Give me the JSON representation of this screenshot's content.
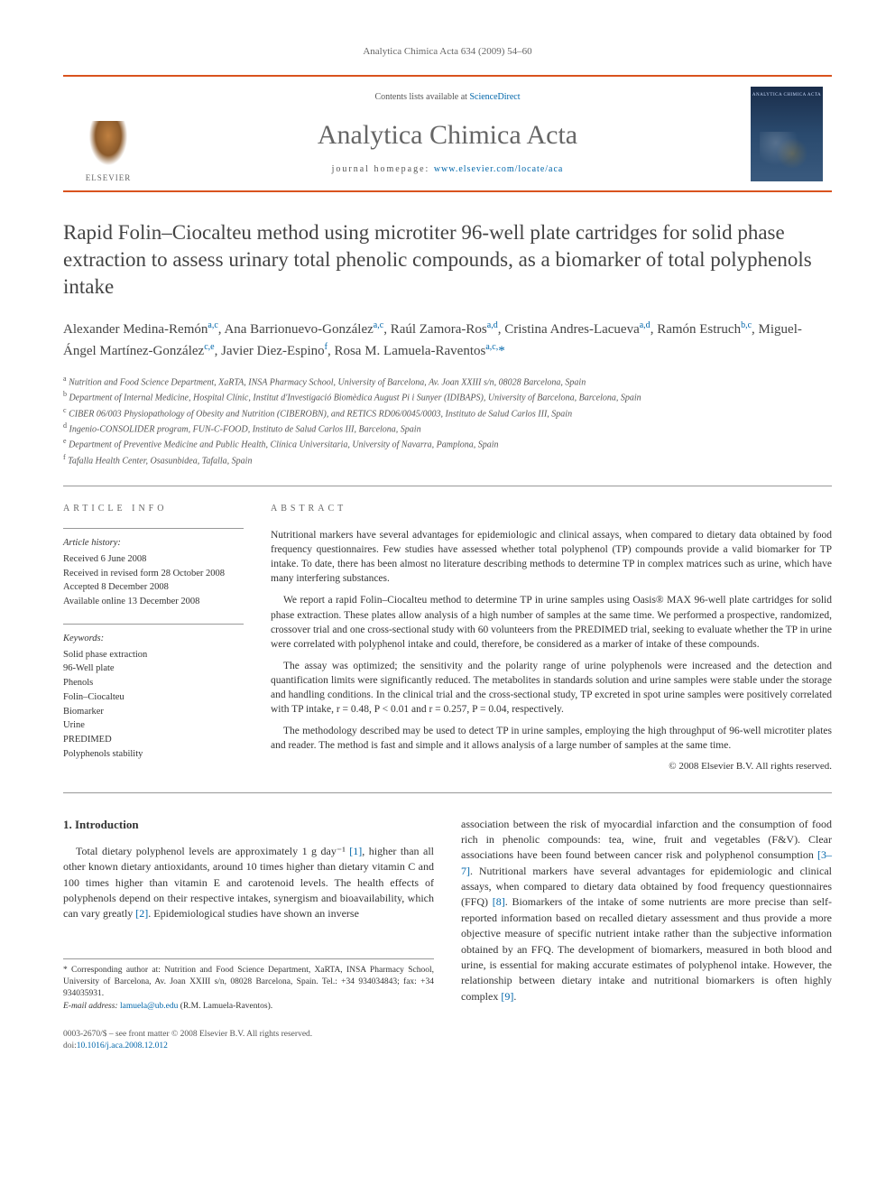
{
  "running_head": "Analytica Chimica Acta 634 (2009) 54–60",
  "masthead": {
    "contents_prefix": "Contents lists available at ",
    "contents_link": "ScienceDirect",
    "journal_name": "Analytica Chimica Acta",
    "homepage_prefix": "journal homepage: ",
    "homepage_link": "www.elsevier.com/locate/aca",
    "publisher_logo_text": "ELSEVIER"
  },
  "article": {
    "title": "Rapid Folin–Ciocalteu method using microtiter 96-well plate cartridges for solid phase extraction to assess urinary total phenolic compounds, as a biomarker of total polyphenols intake",
    "authors_html": "Alexander Medina-Remón<sup>a,c</sup>, Ana Barrionuevo-González<sup>a,c</sup>, Raúl Zamora-Ros<sup>a,d</sup>, Cristina Andres-Lacueva<sup>a,d</sup>, Ramón Estruch<sup>b,c</sup>, Miguel-Ángel Martínez-González<sup>c,e</sup>, Javier Diez-Espino<sup>f</sup>, Rosa M. Lamuela-Raventos<sup>a,c,</sup><span class='corr'>*</span>",
    "affiliations": [
      {
        "tag": "a",
        "text": "Nutrition and Food Science Department, XaRTA, INSA Pharmacy School, University of Barcelona, Av. Joan XXIII s/n, 08028 Barcelona, Spain"
      },
      {
        "tag": "b",
        "text": "Department of Internal Medicine, Hospital Clínic, Institut d'Investigació Biomèdica August Pi i Sunyer (IDIBAPS), University of Barcelona, Barcelona, Spain"
      },
      {
        "tag": "c",
        "text": "CIBER 06/003 Physiopathology of Obesity and Nutrition (CIBEROBN), and RETICS RD06/0045/0003, Instituto de Salud Carlos III, Spain"
      },
      {
        "tag": "d",
        "text": "Ingenio-CONSOLIDER program, FUN-C-FOOD, Instituto de Salud Carlos III, Barcelona, Spain"
      },
      {
        "tag": "e",
        "text": "Department of Preventive Medicine and Public Health, Clínica Universitaria, University of Navarra, Pamplona, Spain"
      },
      {
        "tag": "f",
        "text": "Tafalla Health Center, Osasunbidea, Tafalla, Spain"
      }
    ]
  },
  "info": {
    "heading": "article info",
    "history_title": "Article history:",
    "history": [
      "Received 6 June 2008",
      "Received in revised form 28 October 2008",
      "Accepted 8 December 2008",
      "Available online 13 December 2008"
    ],
    "keywords_title": "Keywords:",
    "keywords": [
      "Solid phase extraction",
      "96-Well plate",
      "Phenols",
      "Folin–Ciocalteu",
      "Biomarker",
      "Urine",
      "PREDIMED",
      "Polyphenols stability"
    ]
  },
  "abstract": {
    "heading": "abstract",
    "paragraphs": [
      "Nutritional markers have several advantages for epidemiologic and clinical assays, when compared to dietary data obtained by food frequency questionnaires. Few studies have assessed whether total polyphenol (TP) compounds provide a valid biomarker for TP intake. To date, there has been almost no literature describing methods to determine TP in complex matrices such as urine, which have many interfering substances.",
      "We report a rapid Folin–Ciocalteu method to determine TP in urine samples using Oasis® MAX 96-well plate cartridges for solid phase extraction. These plates allow analysis of a high number of samples at the same time. We performed a prospective, randomized, crossover trial and one cross-sectional study with 60 volunteers from the PREDIMED trial, seeking to evaluate whether the TP in urine were correlated with polyphenol intake and could, therefore, be considered as a marker of intake of these compounds.",
      "The assay was optimized; the sensitivity and the polarity range of urine polyphenols were increased and the detection and quantification limits were significantly reduced. The metabolites in standards solution and urine samples were stable under the storage and handling conditions. In the clinical trial and the cross-sectional study, TP excreted in spot urine samples were positively correlated with TP intake, r = 0.48, P < 0.01 and r = 0.257, P = 0.04, respectively.",
      "The methodology described may be used to detect TP in urine samples, employing the high throughput of 96-well microtiter plates and reader. The method is fast and simple and it allows analysis of a large number of samples at the same time."
    ],
    "copyright": "© 2008 Elsevier B.V. All rights reserved."
  },
  "body": {
    "section_number": "1.",
    "section_title": "Introduction",
    "col1": "Total dietary polyphenol levels are approximately 1 g day⁻¹ [1], higher than all other known dietary antioxidants, around 10 times higher than dietary vitamin C and 100 times higher than vitamin E and carotenoid levels. The health effects of polyphenols depend on their respective intakes, synergism and bioavailability, which can vary greatly [2]. Epidemiological studies have shown an inverse",
    "col2": "association between the risk of myocardial infarction and the consumption of food rich in phenolic compounds: tea, wine, fruit and vegetables (F&V). Clear associations have been found between cancer risk and polyphenol consumption [3–7]. Nutritional markers have several advantages for epidemiologic and clinical assays, when compared to dietary data obtained by food frequency questionnaires (FFQ) [8]. Biomarkers of the intake of some nutrients are more precise than self-reported information based on recalled dietary assessment and thus provide a more objective measure of specific nutrient intake rather than the subjective information obtained by an FFQ. The development of biomarkers, measured in both blood and urine, is essential for making accurate estimates of polyphenol intake. However, the relationship between dietary intake and nutritional biomarkers is often highly complex [9]."
  },
  "corr_footer": {
    "star": "*",
    "text": " Corresponding author at: Nutrition and Food Science Department, XaRTA, INSA Pharmacy School, University of Barcelona, Av. Joan XXIII s/n, 08028 Barcelona, Spain. Tel.: +34 934034843; fax: +34 934035931.",
    "email_label": "E-mail address: ",
    "email": "lamuela@ub.edu",
    "email_suffix": " (R.M. Lamuela-Raventos)."
  },
  "footer": {
    "line1": "0003-2670/$ – see front matter © 2008 Elsevier B.V. All rights reserved.",
    "doi_label": "doi:",
    "doi": "10.1016/j.aca.2008.12.012"
  },
  "colors": {
    "brand_orange": "#d9531e",
    "link_blue": "#0066aa",
    "heading_gray": "#666",
    "text_gray": "#444"
  }
}
